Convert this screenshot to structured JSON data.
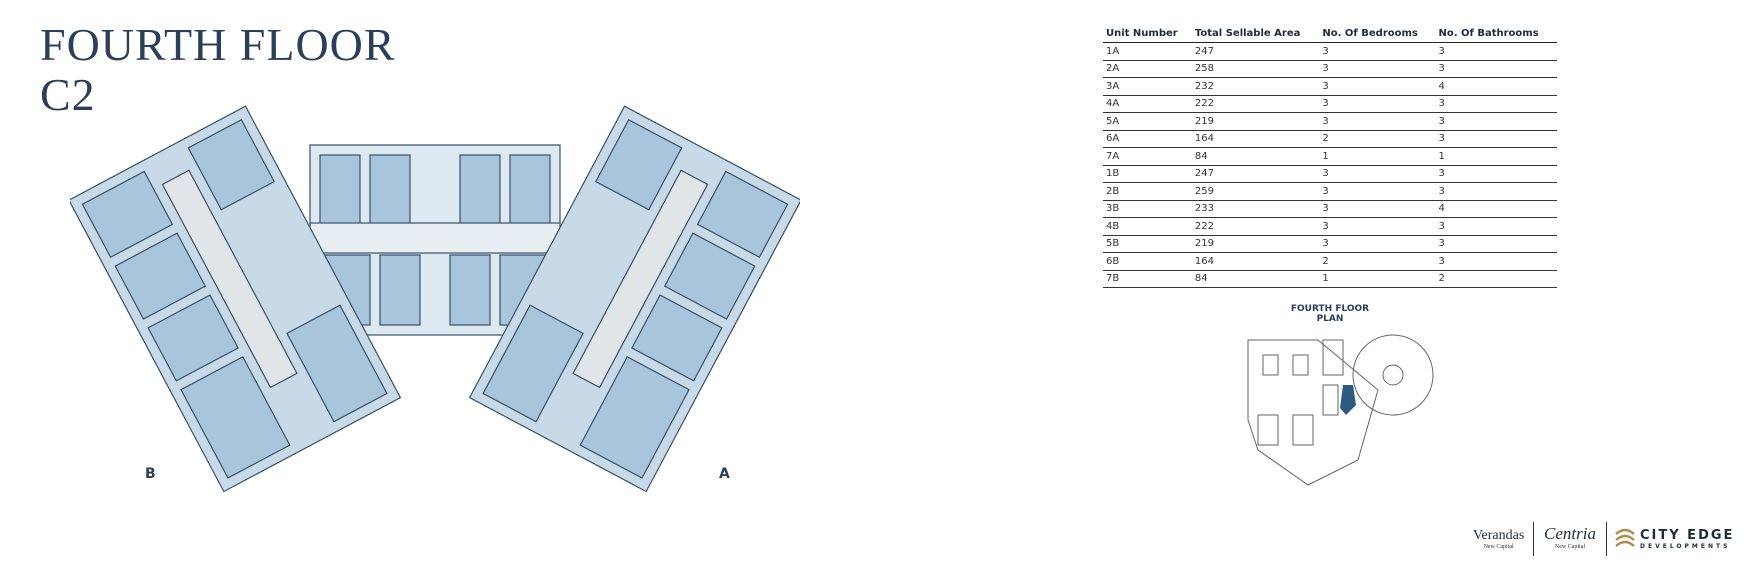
{
  "header": {
    "title": "FOURTH FLOOR",
    "subtitle": "C2"
  },
  "plan": {
    "wing_labels": [
      "B",
      "A"
    ]
  },
  "table": {
    "columns": [
      "Unit Number",
      "Total Sellable Area",
      "No. Of Bedrooms",
      "No. Of Bathrooms"
    ],
    "rows": [
      [
        "1A",
        "247",
        "3",
        "3"
      ],
      [
        "2A",
        "258",
        "3",
        "3"
      ],
      [
        "3A",
        "232",
        "3",
        "4"
      ],
      [
        "4A",
        "222",
        "3",
        "3"
      ],
      [
        "5A",
        "219",
        "3",
        "3"
      ],
      [
        "6A",
        "164",
        "2",
        "3"
      ],
      [
        "7A",
        "84",
        "1",
        "1"
      ],
      [
        "1B",
        "247",
        "3",
        "3"
      ],
      [
        "2B",
        "259",
        "3",
        "3"
      ],
      [
        "3B",
        "233",
        "3",
        "4"
      ],
      [
        "4B",
        "222",
        "3",
        "3"
      ],
      [
        "5B",
        "219",
        "3",
        "3"
      ],
      [
        "6B",
        "164",
        "2",
        "3"
      ],
      [
        "7B",
        "84",
        "1",
        "2"
      ]
    ]
  },
  "key_plan": {
    "title": "FOURTH FLOOR PLAN"
  },
  "logos": {
    "verandas": "Verandas",
    "verandas_sub": "New Capital",
    "centria": "Centria",
    "centria_sub": "New Capital",
    "city_edge": "CITY EDGE",
    "city_edge_sub": "DEVELOPMENTS"
  }
}
